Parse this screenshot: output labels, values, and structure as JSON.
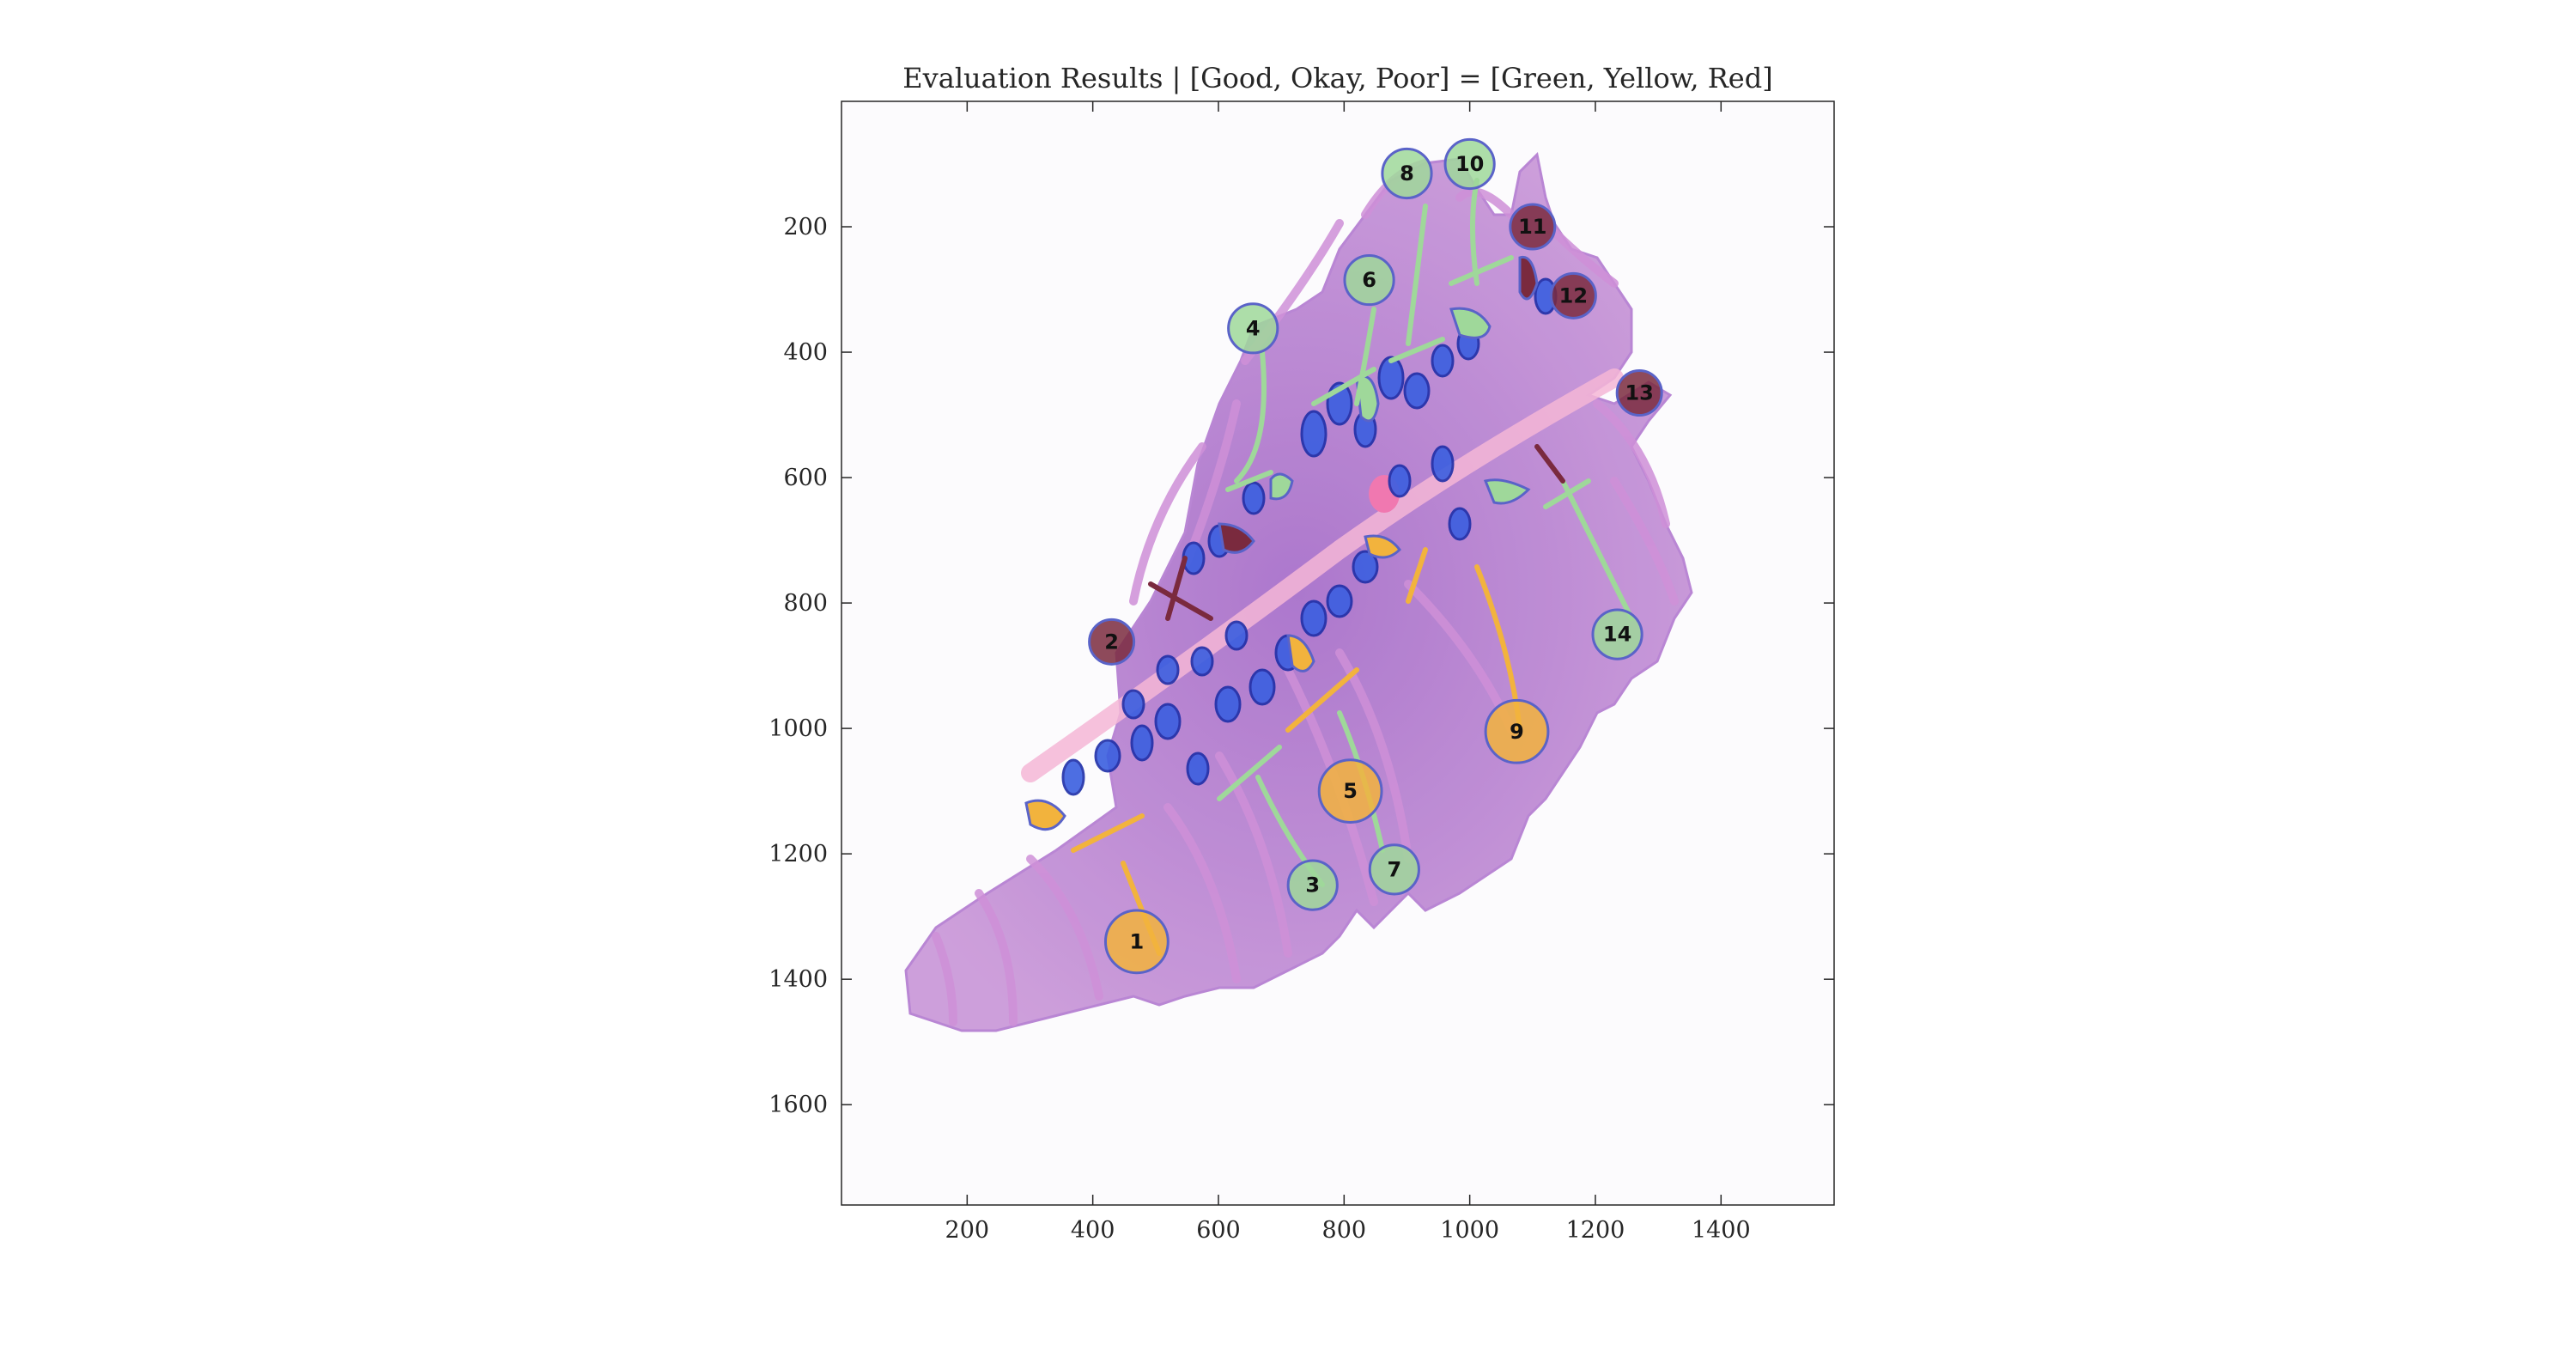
{
  "figure": {
    "title": "Evaluation Results | [Good, Okay, Poor] = [Green, Yellow, Red]"
  },
  "axes": {
    "xlim": [
      0,
      1580
    ],
    "ylim": [
      1760,
      0
    ],
    "y_reversed": true,
    "x_ticks": [
      200,
      400,
      600,
      800,
      1000,
      1200,
      1400
    ],
    "y_ticks": [
      200,
      400,
      600,
      800,
      1000,
      1200,
      1400,
      1600
    ],
    "x_tick_labels": [
      "200",
      "400",
      "600",
      "800",
      "1000",
      "1200",
      "1400"
    ],
    "y_tick_labels": [
      "200",
      "400",
      "600",
      "800",
      "1000",
      "1200",
      "1400",
      "1600"
    ],
    "grid": false,
    "box": true
  },
  "legend_colors": {
    "Good": "#9fd89a",
    "Okay": "#f2b33d",
    "Poor": "#7a2a3e",
    "outline": "#5a63c8",
    "crypt": "#3b5fe0"
  },
  "regions": [
    {
      "label": "1",
      "rating": "Okay",
      "x": 470,
      "y": 1340
    },
    {
      "label": "2",
      "rating": "Poor",
      "x": 430,
      "y": 862
    },
    {
      "label": "3",
      "rating": "Good",
      "x": 750,
      "y": 1250
    },
    {
      "label": "4",
      "rating": "Good",
      "x": 655,
      "y": 362
    },
    {
      "label": "5",
      "rating": "Okay",
      "x": 810,
      "y": 1100
    },
    {
      "label": "6",
      "rating": "Good",
      "x": 840,
      "y": 285
    },
    {
      "label": "7",
      "rating": "Good",
      "x": 880,
      "y": 1225
    },
    {
      "label": "8",
      "rating": "Good",
      "x": 900,
      "y": 115
    },
    {
      "label": "9",
      "rating": "Okay",
      "x": 1075,
      "y": 1005
    },
    {
      "label": "10",
      "rating": "Good",
      "x": 1000,
      "y": 100
    },
    {
      "label": "11",
      "rating": "Poor",
      "x": 1100,
      "y": 200
    },
    {
      "label": "12",
      "rating": "Poor",
      "x": 1165,
      "y": 310
    },
    {
      "label": "13",
      "rating": "Poor",
      "x": 1270,
      "y": 465
    },
    {
      "label": "14",
      "rating": "Good",
      "x": 1235,
      "y": 850
    }
  ]
}
